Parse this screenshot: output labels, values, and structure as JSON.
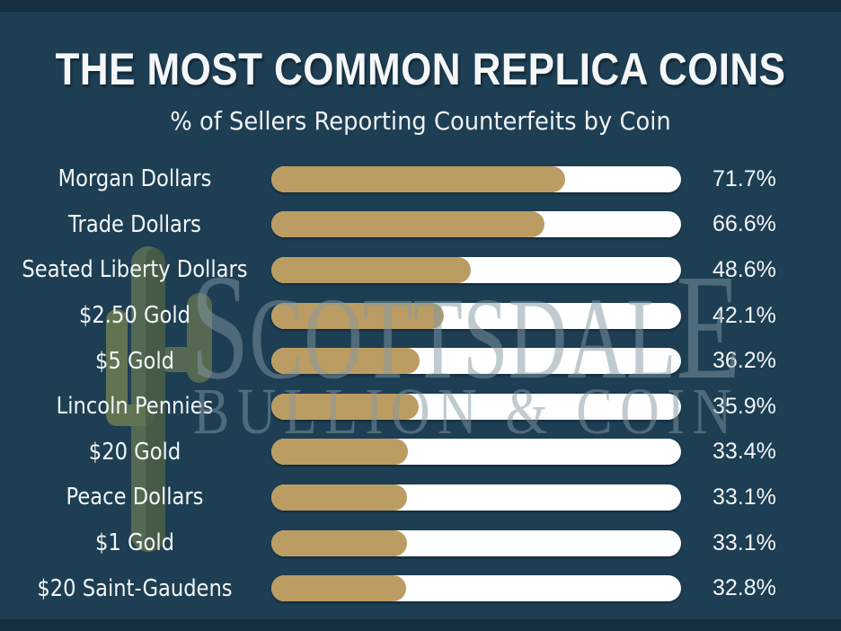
{
  "title": "THE MOST COMMON REPLICA COINS",
  "subtitle": "% of Sellers Reporting Counterfeits by Coin",
  "watermark": {
    "line1_first": "S",
    "line1_mid": "COTTSDAL",
    "line1_last": "E",
    "line2": "BULLION & COIN"
  },
  "colors": {
    "background": "#1d3e53",
    "edge_band": "#15303f",
    "bar_fill_gold": "#bb9c63",
    "bar_track_white": "#ffffff",
    "text_white": "#f4f6f7",
    "watermark_slate": "rgba(130,152,164,0.5)",
    "cactus_body_green": "#5d7052",
    "cactus_shade_green": "#41543f"
  },
  "chart_data": {
    "type": "bar",
    "orientation": "horizontal",
    "title": "THE MOST COMMON REPLICA COINS",
    "subtitle": "% of Sellers Reporting Counterfeits by Coin",
    "xlabel": "",
    "ylabel": "",
    "xlim": [
      0,
      100
    ],
    "grid": false,
    "legend": false,
    "categories": [
      "Morgan Dollars",
      "Trade Dollars",
      "Seated Liberty Dollars",
      "$2.50 Gold",
      "$5 Gold",
      "Lincoln Pennies",
      "$20 Gold",
      "Peace Dollars",
      "$1 Gold",
      "$20 Saint-Gaudens"
    ],
    "values": [
      71.7,
      66.6,
      48.6,
      42.1,
      36.2,
      35.9,
      33.4,
      33.1,
      33.1,
      32.8
    ],
    "value_labels": [
      "71.7%",
      "66.6%",
      "48.6%",
      "42.1%",
      "36.2%",
      "35.9%",
      "33.4%",
      "33.1%",
      "33.1%",
      "32.8%"
    ]
  }
}
